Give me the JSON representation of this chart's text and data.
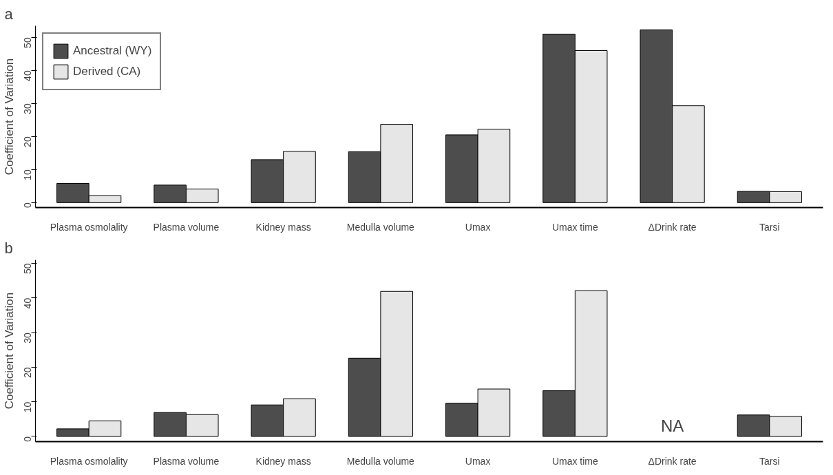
{
  "chart_data": [
    {
      "type": "bar",
      "title": "a",
      "ylabel": "Coefficient of Variation",
      "categories": [
        "Plasma osmolality",
        "Plasma volume",
        "Kidney mass",
        "Medulla volume",
        "Umax",
        "Umax time",
        "ΔDrink rate",
        "Tarsi"
      ],
      "series": [
        {
          "name": "Ancestral (WY)",
          "color": "#4d4d4d",
          "values": [
            5.8,
            5.3,
            13,
            15.4,
            20.5,
            51,
            52.3,
            3.4
          ]
        },
        {
          "name": "Derived (CA)",
          "color": "#e6e6e6",
          "values": [
            2.1,
            4.1,
            15.5,
            23.7,
            22.2,
            46,
            29.3,
            3.3
          ]
        }
      ],
      "ylim": [
        -1.5,
        53.5
      ],
      "yticks": [
        0,
        10,
        20,
        30,
        40,
        50
      ],
      "grid": false,
      "legend": "top left"
    },
    {
      "type": "bar",
      "title": "b",
      "ylabel": "Coefficient of Variation",
      "categories": [
        "Plasma osmolality",
        "Plasma volume",
        "Kidney mass",
        "Medulla volume",
        "Umax",
        "Umax time",
        "ΔDrink rate",
        "Tarsi"
      ],
      "series": [
        {
          "color": "#4d4d4d",
          "values": [
            2.2,
            6.9,
            9.1,
            22.6,
            9.6,
            13.2,
            null,
            6.2
          ]
        },
        {
          "color": "#e6e6e6",
          "values": [
            4.5,
            6.3,
            10.9,
            41.9,
            13.7,
            42.1,
            null,
            5.8
          ]
        }
      ],
      "ylim": [
        -1.5,
        51
      ],
      "yticks": [
        0,
        10,
        20,
        30,
        40,
        50
      ],
      "grid": false,
      "legend": false,
      "annotations": [
        "NA"
      ]
    }
  ]
}
